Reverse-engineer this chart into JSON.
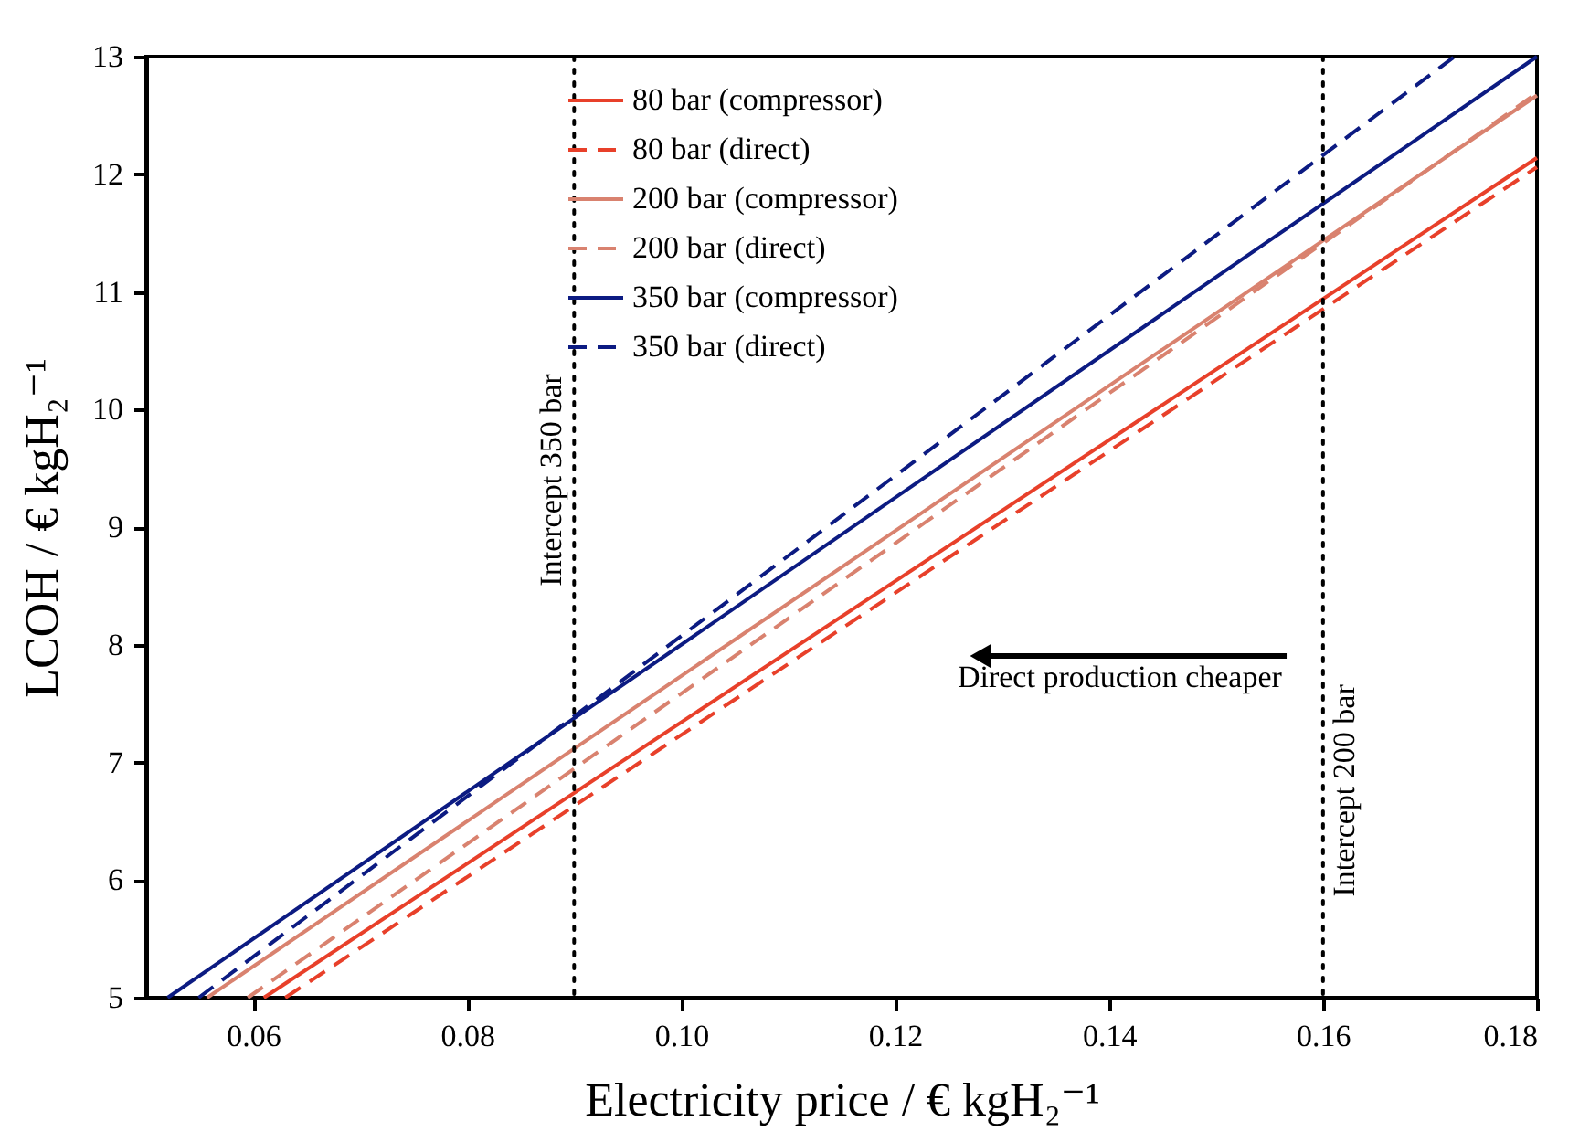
{
  "chart_data": {
    "type": "line",
    "xlabel": "Electricity price / € kgH₂⁻¹",
    "ylabel": "LCOH / € kgH₂⁻¹",
    "xlim": [
      0.05,
      0.18
    ],
    "xticks": [
      {
        "value": 0.06,
        "label": "0.06"
      },
      {
        "value": 0.08,
        "label": "0.08"
      },
      {
        "value": 0.1,
        "label": "0.10"
      },
      {
        "value": 0.12,
        "label": "0.12"
      },
      {
        "value": 0.14,
        "label": "0.14"
      },
      {
        "value": 0.16,
        "label": "0.16"
      },
      {
        "value": 0.18,
        "label": "0.18"
      }
    ],
    "ylim": [
      5,
      13
    ],
    "yticks": [
      5,
      6,
      7,
      8,
      9,
      10,
      11,
      12,
      13
    ],
    "grid": false,
    "legend": "top",
    "marker": "none",
    "series": [
      {
        "name": "80 bar (compressor)",
        "color": "#e8402a",
        "line_style": "solid",
        "x": [
          0.061,
          0.18
        ],
        "values": [
          5,
          12.14
        ]
      },
      {
        "name": "80 bar (direct)",
        "color": "#e8402a",
        "line_style": "dashed",
        "x": [
          0.063,
          0.18
        ],
        "values": [
          5,
          12.06
        ]
      },
      {
        "name": "200 bar (compressor)",
        "color": "#d9826f",
        "line_style": "solid",
        "x": [
          0.0557,
          0.18
        ],
        "values": [
          5,
          12.67
        ]
      },
      {
        "name": "200 bar (direct)",
        "color": "#d9826f",
        "line_style": "dashed",
        "x": [
          0.0595,
          0.18
        ],
        "values": [
          5,
          12.69
        ]
      },
      {
        "name": "350 bar (compressor)",
        "color": "#0c1b82",
        "line_style": "solid",
        "x": [
          0.052,
          0.18
        ],
        "values": [
          5,
          13
        ]
      },
      {
        "name": "350 bar (direct)",
        "color": "#0c1b82",
        "line_style": "dashed",
        "x": [
          0.0549,
          0.1723
        ],
        "values": [
          5,
          13
        ]
      }
    ],
    "ref_lines": [
      {
        "axis": "x",
        "value": 0.09,
        "label": "Intercept 350 bar",
        "color": "#000000",
        "line_style": "dotted"
      },
      {
        "axis": "x",
        "value": 0.16,
        "label": "Intercept 200 bar",
        "color": "#000000",
        "line_style": "dotted"
      }
    ],
    "annotations": [
      "Direct production cheaper"
    ]
  }
}
